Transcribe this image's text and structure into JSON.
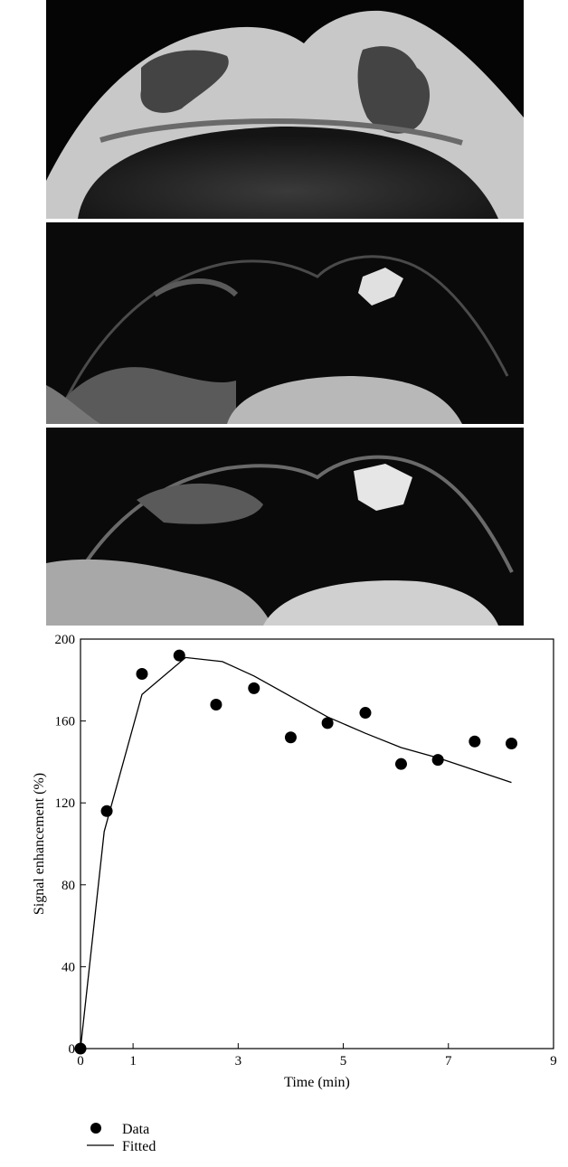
{
  "panels": [
    {
      "name": "mri-panel-1"
    },
    {
      "name": "mri-panel-2"
    },
    {
      "name": "mri-panel-3"
    }
  ],
  "chart_data": {
    "type": "scatter",
    "xlabel": "Time (min)",
    "ylabel": "Signal enhancement (%)",
    "xlim": [
      0,
      9
    ],
    "ylim": [
      0,
      200
    ],
    "xticks": [
      0,
      1,
      3,
      5,
      7,
      9
    ],
    "yticks": [
      0,
      40,
      80,
      120,
      160,
      200
    ],
    "grid": false,
    "legend_position": "bottom-left",
    "series": [
      {
        "name": "Data",
        "kind": "points",
        "color": "#000000",
        "points": [
          [
            0,
            0
          ],
          [
            0.5,
            116
          ],
          [
            1.17,
            183
          ],
          [
            1.88,
            192
          ],
          [
            2.58,
            168
          ],
          [
            3.3,
            176
          ],
          [
            4.0,
            152
          ],
          [
            4.7,
            159
          ],
          [
            5.42,
            164
          ],
          [
            6.1,
            139
          ],
          [
            6.8,
            141
          ],
          [
            7.5,
            150
          ],
          [
            8.2,
            149
          ]
        ]
      },
      {
        "name": "Fitted",
        "kind": "line",
        "color": "#000000",
        "points": [
          [
            0,
            0
          ],
          [
            0.45,
            106
          ],
          [
            1.17,
            173
          ],
          [
            2.0,
            191
          ],
          [
            2.7,
            189
          ],
          [
            3.3,
            182
          ],
          [
            4.0,
            172
          ],
          [
            4.7,
            162
          ],
          [
            5.42,
            154
          ],
          [
            6.1,
            147
          ],
          [
            6.8,
            142
          ],
          [
            7.5,
            136
          ],
          [
            8.2,
            130
          ]
        ]
      }
    ]
  }
}
